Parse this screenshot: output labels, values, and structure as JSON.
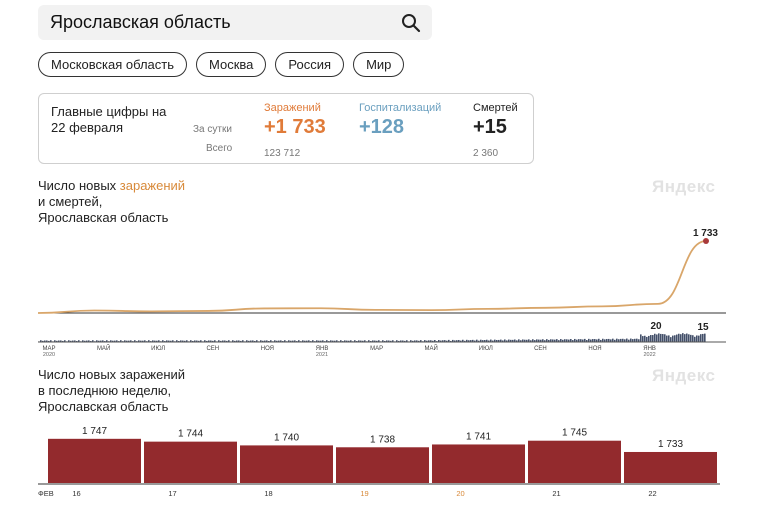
{
  "search": {
    "value": "Ярославская область"
  },
  "chips": [
    "Московская область",
    "Москва",
    "Россия",
    "Мир"
  ],
  "stats": {
    "title_line1": "Главные цифры на",
    "title_line2": "22 февраля",
    "label_day": "За сутки",
    "label_total": "Всего",
    "infections": {
      "label": "Заражений",
      "day": "+1 733",
      "total": "123 712",
      "color": "#e07b39"
    },
    "hospital": {
      "label": "Госпитализаций",
      "day": "+128",
      "total": "",
      "color": "#6a9fbf"
    },
    "deaths": {
      "label": "Смертей",
      "day": "+15",
      "total": "2 360",
      "color": "#222222"
    }
  },
  "section1": {
    "title_pre": "Число новых ",
    "title_hl": "заражений",
    "title_line2": "и смертей,",
    "title_line3": "Ярославская область",
    "watermark": "Яндекс"
  },
  "section2": {
    "title_line1": "Число новых заражений",
    "title_line2": "в последнюю неделю,",
    "title_line3": "Ярославская область",
    "watermark": "Яндекс"
  },
  "chart_data": [
    {
      "type": "line",
      "series": [
        {
          "x": [
            "2020-03",
            "2020-05",
            "2020-07",
            "2020-09",
            "2020-11",
            "2021-01",
            "2021-03",
            "2021-05",
            "2021-07",
            "2021-09",
            "2021-11",
            "2022-01",
            "2022-02-22"
          ],
          "values": [
            0,
            60,
            40,
            50,
            110,
            115,
            75,
            70,
            100,
            125,
            160,
            220,
            1733
          ]
        }
      ],
      "deaths_peak_label": "20",
      "deaths_last_label": "15",
      "infections_last_label": "1 733",
      "x_tick_labels": [
        {
          "label": "МАР",
          "sub": "2020"
        },
        {
          "label": "МАЙ",
          "sub": ""
        },
        {
          "label": "ИЮЛ",
          "sub": ""
        },
        {
          "label": "СЕН",
          "sub": ""
        },
        {
          "label": "НОЯ",
          "sub": ""
        },
        {
          "label": "ЯНВ",
          "sub": "2021"
        },
        {
          "label": "МАР",
          "sub": ""
        },
        {
          "label": "МАЙ",
          "sub": ""
        },
        {
          "label": "ИЮЛ",
          "sub": ""
        },
        {
          "label": "СЕН",
          "sub": ""
        },
        {
          "label": "НОЯ",
          "sub": ""
        },
        {
          "label": "ЯНВ",
          "sub": "2022"
        }
      ],
      "colors": {
        "infections": "#d9a66a",
        "end_dot": "#a83a3a",
        "deaths": "#44506a"
      }
    },
    {
      "type": "bar",
      "month_label": "ФЕВ",
      "categories": [
        "16",
        "17",
        "18",
        "19",
        "20",
        "21",
        "22"
      ],
      "values": [
        1747,
        1744,
        1740,
        1738,
        1741,
        1745,
        1733
      ],
      "value_labels": [
        "1 747",
        "1 744",
        "1 740",
        "1 738",
        "1 741",
        "1 745",
        "1 733"
      ],
      "weekend_categories": [
        "19",
        "20"
      ],
      "colors": {
        "bar": "#932a2d",
        "weekend_label": "#d88a3a"
      }
    }
  ]
}
